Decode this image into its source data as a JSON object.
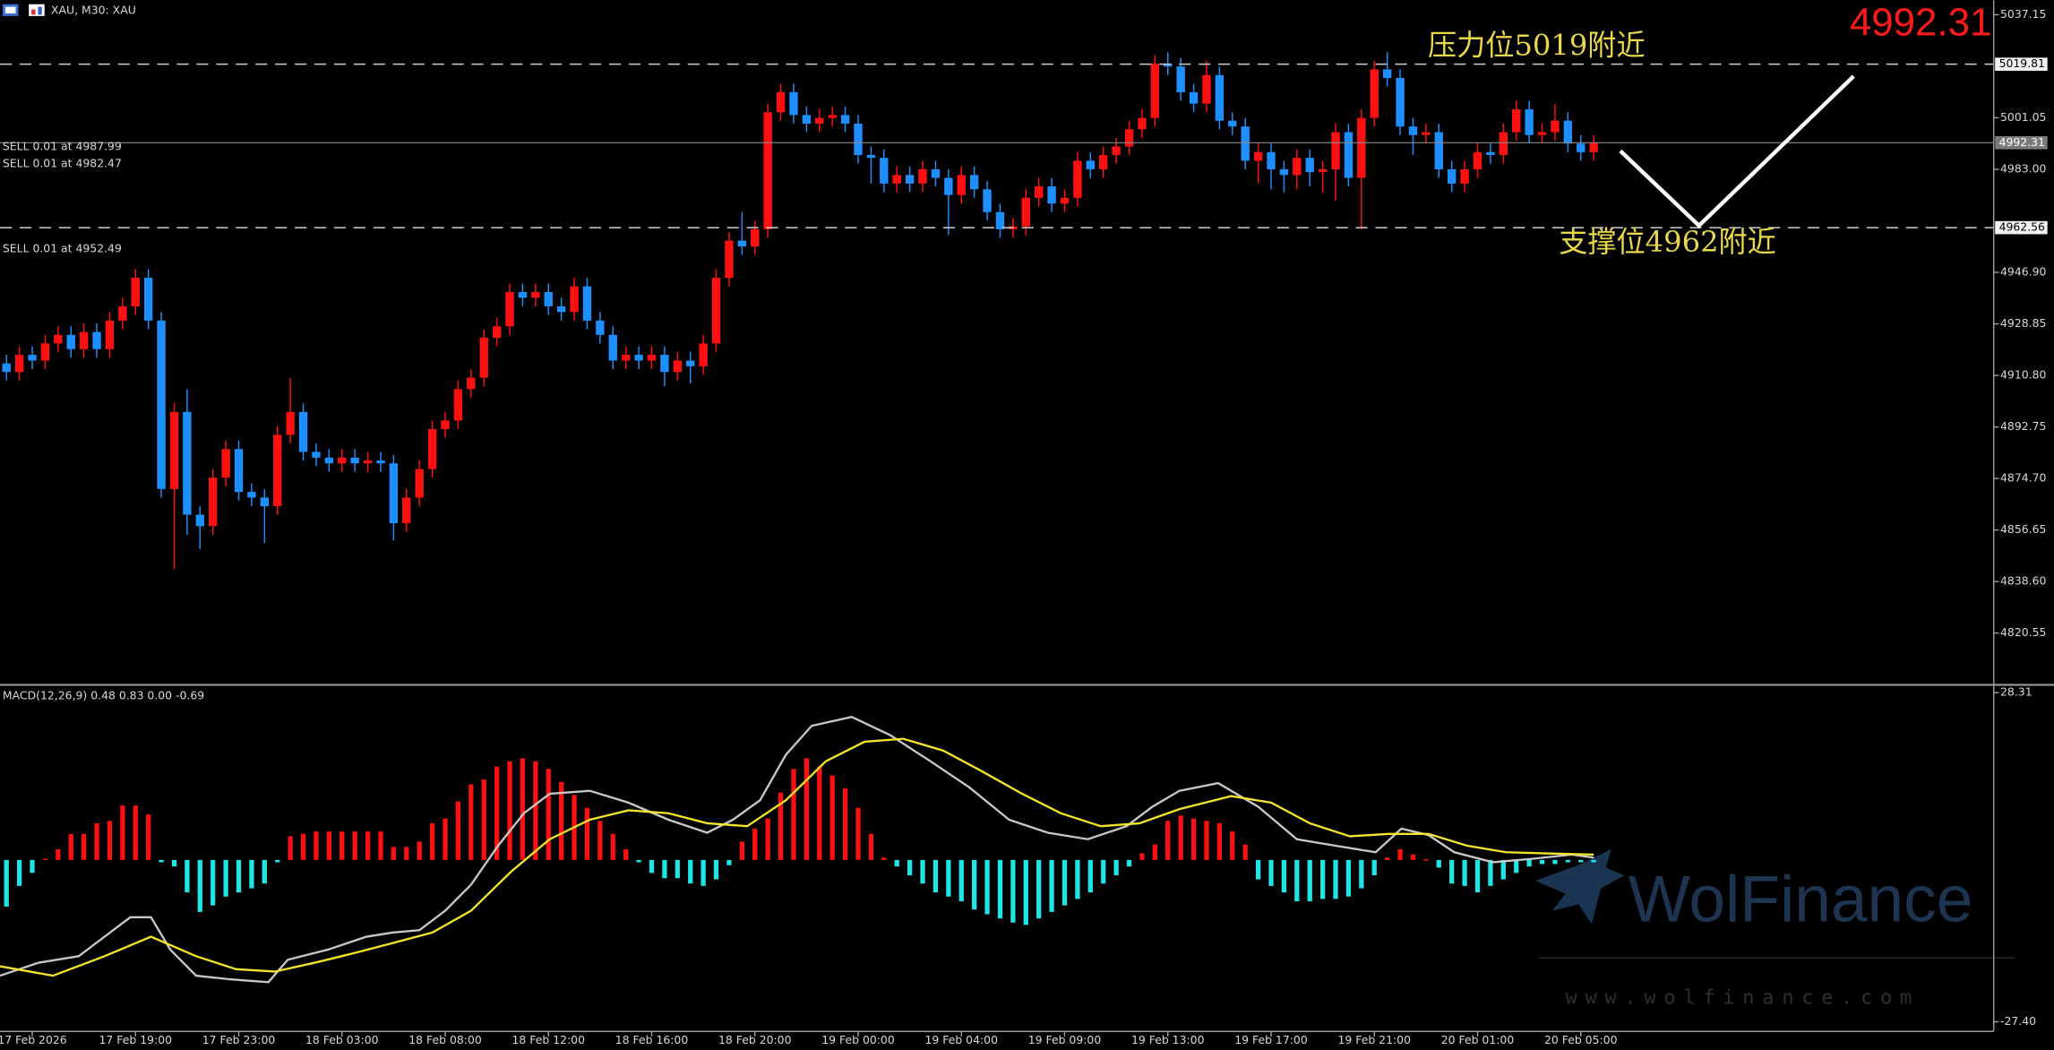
{
  "header": {
    "symbol": "XAU, M30: XAU"
  },
  "chart_data": [
    {
      "type": "candlestick",
      "open": [
        4915,
        4912,
        4918,
        4916,
        4922,
        4925,
        4920,
        4926,
        4920,
        4930,
        4935,
        4945,
        4930,
        4871,
        4898,
        4862,
        4858,
        4875,
        4885,
        4870,
        4868,
        4865,
        4890,
        4898,
        4884,
        4882,
        4880,
        4882,
        4880,
        4881,
        4880,
        4859,
        4868,
        4878,
        4892,
        4895,
        4906,
        4910,
        4924,
        4928,
        4940,
        4938,
        4940,
        4935,
        4933,
        4942,
        4930,
        4925,
        4916,
        4918,
        4916,
        4918,
        4912,
        4916,
        4914,
        4922,
        4945,
        4958,
        4956,
        4962,
        5003,
        5010,
        5002,
        4999,
        5001,
        5002,
        4999,
        4988,
        4987,
        4978,
        4981,
        4978,
        4983,
        4980,
        4974,
        4981,
        4976,
        4968,
        4962,
        4963,
        4973,
        4977,
        4971,
        4973,
        4986,
        4983,
        4988,
        4991,
        4997,
        5001,
        5020,
        5019,
        5010,
        5006,
        5016,
        5000,
        4998,
        4986,
        4989,
        4983,
        4981,
        4987,
        4982,
        4983,
        4996,
        4980,
        5001,
        5018,
        5015,
        4998,
        4995,
        4996,
        4983,
        4978,
        4983,
        4989,
        4988,
        4996,
        5004,
        4995,
        4996,
        5000,
        4992,
        4989
      ],
      "high": [
        4918,
        4921,
        4921,
        4925,
        4928,
        4928,
        4929,
        4929,
        4933,
        4938,
        4948,
        4948,
        4933,
        4901,
        4906,
        4865,
        4878,
        4888,
        4888,
        4873,
        4871,
        4893,
        4910,
        4901,
        4887,
        4885,
        4885,
        4885,
        4884,
        4884,
        4883,
        4871,
        4881,
        4895,
        4898,
        4909,
        4913,
        4927,
        4931,
        4943,
        4943,
        4943,
        4943,
        4938,
        4945,
        4945,
        4933,
        4928,
        4921,
        4921,
        4921,
        4921,
        4919,
        4919,
        4925,
        4948,
        4961,
        4968,
        4965,
        5006,
        5013,
        5013,
        5005,
        5004,
        5005,
        5005,
        5002,
        4991,
        4990,
        4984,
        4984,
        4986,
        4986,
        4983,
        4984,
        4984,
        4979,
        4971,
        4966,
        4976,
        4980,
        4980,
        4976,
        4989,
        4989,
        4991,
        4994,
        5000,
        5004,
        5023,
        5024,
        5022,
        5013,
        5021,
        5019,
        5003,
        5001,
        4992,
        4992,
        4986,
        4990,
        4990,
        4986,
        4999,
        4999,
        5004,
        5021,
        5024,
        5018,
        5001,
        4999,
        4999,
        4986,
        4986,
        4992,
        4992,
        4999,
        5007,
        5007,
        4999,
        5006,
        5003,
        4995,
        4995
      ],
      "low": [
        4909,
        4909,
        4913,
        4913,
        4919,
        4917,
        4917,
        4917,
        4917,
        4927,
        4932,
        4927,
        4868,
        4843,
        4855,
        4850,
        4855,
        4872,
        4867,
        4865,
        4852,
        4862,
        4887,
        4881,
        4879,
        4877,
        4877,
        4877,
        4877,
        4877,
        4853,
        4856,
        4865,
        4875,
        4889,
        4892,
        4903,
        4907,
        4921,
        4925,
        4935,
        4935,
        4932,
        4930,
        4930,
        4927,
        4922,
        4913,
        4913,
        4913,
        4913,
        4907,
        4909,
        4908,
        4911,
        4919,
        4942,
        4953,
        4953,
        4959,
        5000,
        4999,
        4996,
        4996,
        4998,
        4996,
        4985,
        4978,
        4975,
        4975,
        4975,
        4975,
        4977,
        4960,
        4971,
        4973,
        4965,
        4959,
        4959,
        4960,
        4970,
        4968,
        4968,
        4970,
        4980,
        4980,
        4985,
        4988,
        4994,
        4998,
        5016,
        5007,
        5003,
        5003,
        4997,
        4995,
        4983,
        4978,
        4976,
        4975,
        4976,
        4977,
        4975,
        4972,
        4977,
        4962,
        4998,
        5012,
        4995,
        4988,
        4992,
        4980,
        4975,
        4975,
        4980,
        4985,
        4985,
        4993,
        4992,
        4992,
        4993,
        4989,
        4986,
        4986
      ],
      "close": [
        4912,
        4918,
        4916,
        4922,
        4925,
        4920,
        4926,
        4920,
        4930,
        4935,
        4945,
        4930,
        4871,
        4898,
        4862,
        4858,
        4875,
        4885,
        4870,
        4868,
        4865,
        4890,
        4898,
        4884,
        4882,
        4880,
        4882,
        4880,
        4881,
        4880,
        4859,
        4868,
        4878,
        4892,
        4895,
        4906,
        4910,
        4924,
        4928,
        4940,
        4938,
        4940,
        4935,
        4933,
        4942,
        4930,
        4925,
        4916,
        4918,
        4916,
        4918,
        4912,
        4916,
        4914,
        4922,
        4945,
        4958,
        4956,
        4962,
        5003,
        5010,
        5002,
        4999,
        5001,
        5002,
        4999,
        4988,
        4987,
        4978,
        4981,
        4978,
        4983,
        4980,
        4974,
        4981,
        4976,
        4968,
        4962,
        4963,
        4973,
        4977,
        4971,
        4973,
        4986,
        4983,
        4988,
        4991,
        4997,
        5001,
        5020,
        5019,
        5010,
        5006,
        5016,
        5000,
        4998,
        4986,
        4989,
        4983,
        4981,
        4987,
        4982,
        4983,
        4996,
        4980,
        5001,
        5018,
        5015,
        4998,
        4995,
        4996,
        4983,
        4978,
        4983,
        4989,
        4988,
        4996,
        5004,
        4995,
        4996,
        5000,
        4992,
        4989,
        4992.31
      ],
      "up_color": "#ff1010",
      "down_color": "#1e8fff",
      "xlim": [
        -0.5,
        154
      ],
      "ylim": [
        4803.1,
        5042.2
      ],
      "yticks": [
        5037.15,
        5001.05,
        {
          "value": 4983,
          "label": "4983.00"
        },
        {
          "value": 4946.9,
          "label": "4946.90"
        },
        4928.85,
        {
          "value": 4910.8,
          "label": "4910.80"
        },
        4892.75,
        {
          "value": 4874.7,
          "label": "4874.70"
        },
        4856.65,
        {
          "value": 4838.6,
          "label": "4838.60"
        },
        4820.55
      ],
      "xticks": [
        {
          "value": 2,
          "label": "17 Feb 2026"
        },
        {
          "value": 10,
          "label": "17 Feb 19:00"
        },
        {
          "value": 18,
          "label": "17 Feb 23:00"
        },
        {
          "value": 26,
          "label": "18 Feb 03:00"
        },
        {
          "value": 34,
          "label": "18 Feb 08:00"
        },
        {
          "value": 42,
          "label": "18 Feb 12:00"
        },
        {
          "value": 50,
          "label": "18 Feb 16:00"
        },
        {
          "value": 58,
          "label": "18 Feb 20:00"
        },
        {
          "value": 66,
          "label": "19 Feb 00:00"
        },
        {
          "value": 74,
          "label": "19 Feb 04:00"
        },
        {
          "value": 82,
          "label": "19 Feb 09:00"
        },
        {
          "value": 90,
          "label": "19 Feb 13:00"
        },
        {
          "value": 98,
          "label": "19 Feb 17:00"
        },
        {
          "value": 106,
          "label": "19 Feb 21:00"
        },
        {
          "value": 114,
          "label": "20 Feb 01:00"
        },
        {
          "value": 122,
          "label": "20 Feb 05:00"
        }
      ],
      "levels": [
        {
          "value": 5019.81,
          "style": "dashed"
        },
        {
          "value": 4962.56,
          "style": "dashed"
        }
      ],
      "bid": 4992.31,
      "orders": [
        "SELL 0.01 at 4987.99",
        "SELL 0.01 at 4982.47",
        "SELL 0.01 at 4952.49"
      ],
      "annotations": [
        "压力位5019附近",
        "支撑位4962附近"
      ]
    },
    {
      "type": "macd",
      "title": "MACD(12,26,9) 0.48 0.83 0.00 -0.69",
      "ylim": [
        -28.8,
        29.3
      ],
      "yticks": [
        28.31,
        {
          "value": -27.4,
          "label": "-27.40"
        }
      ],
      "histogram": {
        "pos_color": "#ff1010",
        "neg_color": "#1fe6e6",
        "values": [
          -7.9,
          -4.4,
          -2.2,
          0.2,
          1.8,
          4.4,
          4.4,
          6.2,
          6.6,
          9.2,
          9.2,
          7.7,
          -0.4,
          -1.1,
          -5.5,
          -8.8,
          -7.7,
          -6.2,
          -5.5,
          -4.8,
          -4.0,
          -0.4,
          4.0,
          4.4,
          4.8,
          4.8,
          4.8,
          4.8,
          4.8,
          4.8,
          2.2,
          2.2,
          3.1,
          6.2,
          7.0,
          9.9,
          12.8,
          13.6,
          15.8,
          16.7,
          17.2,
          16.7,
          15.4,
          13.2,
          11.0,
          8.8,
          6.6,
          4.4,
          1.8,
          -0.4,
          -2.2,
          -3.1,
          -3.1,
          -4.0,
          -4.4,
          -3.3,
          -0.9,
          3.1,
          5.3,
          7.0,
          11.4,
          15.4,
          17.2,
          15.8,
          14.3,
          12.1,
          8.8,
          4.4,
          0.4,
          -1.1,
          -2.6,
          -4.0,
          -5.5,
          -6.2,
          -7.0,
          -8.4,
          -9.2,
          -9.9,
          -10.6,
          -11.0,
          -9.9,
          -8.8,
          -7.7,
          -6.6,
          -5.5,
          -4.0,
          -2.6,
          -1.1,
          1.1,
          2.6,
          6.6,
          7.5,
          7.0,
          6.6,
          6.2,
          4.8,
          2.6,
          -3.3,
          -4.4,
          -5.5,
          -7.0,
          -7.0,
          -6.6,
          -6.6,
          -6.2,
          -4.8,
          -2.6,
          0.4,
          1.8,
          0.9,
          0.1,
          -1.3,
          -4.0,
          -4.4,
          -5.5,
          -4.4,
          -3.3,
          -2.2,
          -1.1,
          -0.7,
          -0.7,
          -0.4,
          -0.4,
          -0.4
        ]
      },
      "series": [
        {
          "color": "#c8c8c8",
          "x": [
            -0.5,
            2.5,
            5.6,
            7.6,
            9.6,
            11.2,
            12.7,
            14.7,
            17.3,
            20.3,
            21.8,
            24.9,
            27.9,
            29.9,
            32,
            34,
            36,
            38.1,
            40.1,
            42.1,
            45.2,
            48.2,
            51.3,
            54.3,
            56.3,
            58.4,
            60.4,
            62.4,
            65.5,
            68.5,
            71.6,
            74.6,
            77.7,
            80.7,
            83.8,
            86.8,
            88.8,
            90.9,
            93.9,
            97,
            100,
            103,
            106.1,
            108.1,
            110.2,
            112.2,
            115.2,
            118.3,
            121.3,
            123
          ],
          "values": [
            -19.6,
            -17.4,
            -16.3,
            -13.0,
            -9.7,
            -9.7,
            -15.2,
            -19.6,
            -20.2,
            -20.7,
            -16.9,
            -15.2,
            -13.0,
            -12.3,
            -11.9,
            -8.6,
            -4.2,
            2.4,
            7.9,
            11.2,
            11.7,
            9.7,
            6.8,
            4.6,
            6.8,
            10.1,
            17.8,
            22.7,
            24.2,
            21.1,
            16.7,
            12.3,
            6.8,
            4.6,
            3.5,
            5.7,
            9.0,
            11.7,
            13.0,
            9.0,
            3.5,
            2.4,
            1.3,
            5.3,
            4.2,
            1.3,
            -0.4,
            0.2,
            0.9,
            0.4
          ]
        },
        {
          "color": "#f2e52a",
          "x": [
            -0.5,
            3.6,
            7.6,
            11.2,
            14.7,
            17.8,
            20.8,
            23.9,
            26.9,
            29.9,
            33,
            36,
            39.1,
            42.1,
            45.2,
            48.2,
            51.3,
            54.3,
            57.4,
            60.4,
            63.5,
            66.5,
            69.5,
            72.6,
            75.6,
            78.7,
            81.7,
            84.8,
            87.8,
            90.9,
            94.9,
            98,
            101,
            104.1,
            107.1,
            110.2,
            113.2,
            116.2,
            119.3,
            123
          ],
          "values": [
            -18.0,
            -19.6,
            -16.3,
            -13.0,
            -16.3,
            -18.5,
            -18.9,
            -17.4,
            -15.8,
            -14.1,
            -12.3,
            -8.6,
            -2.0,
            3.5,
            6.8,
            8.4,
            7.9,
            6.2,
            5.7,
            10.1,
            16.7,
            20.0,
            20.5,
            18.5,
            15.0,
            11.2,
            7.9,
            5.7,
            6.2,
            8.6,
            10.8,
            9.7,
            6.2,
            4.0,
            4.4,
            4.4,
            2.4,
            1.3,
            1.1,
            0.9
          ]
        }
      ]
    }
  ],
  "watermark": {
    "brand": "WolFinance",
    "url": "www.wolfinance.com"
  }
}
